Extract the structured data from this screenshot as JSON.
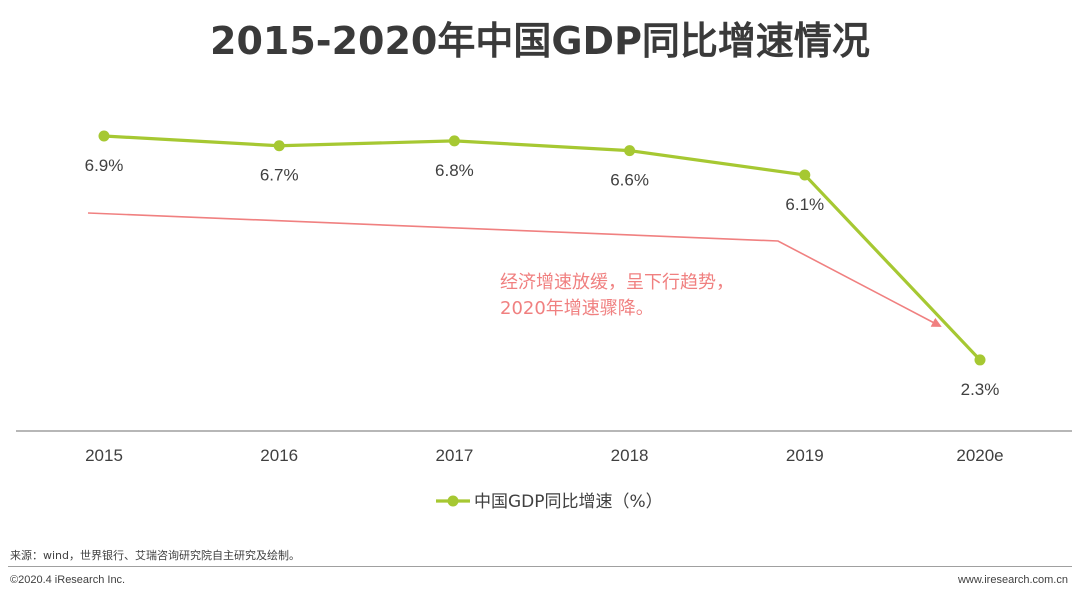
{
  "title": "2015-2020年中国GDP同比增速情况",
  "chart_data": {
    "type": "line",
    "title": "2015-2020年中国GDP同比增速情况",
    "categories": [
      "2015",
      "2016",
      "2017",
      "2018",
      "2019",
      "2020e"
    ],
    "series": [
      {
        "name": "中国GDP同比增速（%）",
        "values": [
          6.9,
          6.7,
          6.8,
          6.6,
          6.1,
          2.3
        ],
        "labels": [
          "6.9%",
          "6.7%",
          "6.8%",
          "6.6%",
          "6.1%",
          "2.3%"
        ],
        "color": "#a6c832"
      }
    ],
    "ylim": [
      0,
      7.5
    ],
    "xlabel": "",
    "ylabel": "",
    "legend": "bottom-center",
    "grid": false,
    "annotation": {
      "lines": [
        "经济增速放缓，呈下行趋势，",
        "2020年增速骤降。"
      ],
      "color": "#f08080"
    }
  },
  "source": "来源：wind，世界银行、艾瑞咨询研究院自主研究及绘制。",
  "copyright": "©2020.4 iResearch Inc.",
  "website": "www.iresearch.com.cn"
}
